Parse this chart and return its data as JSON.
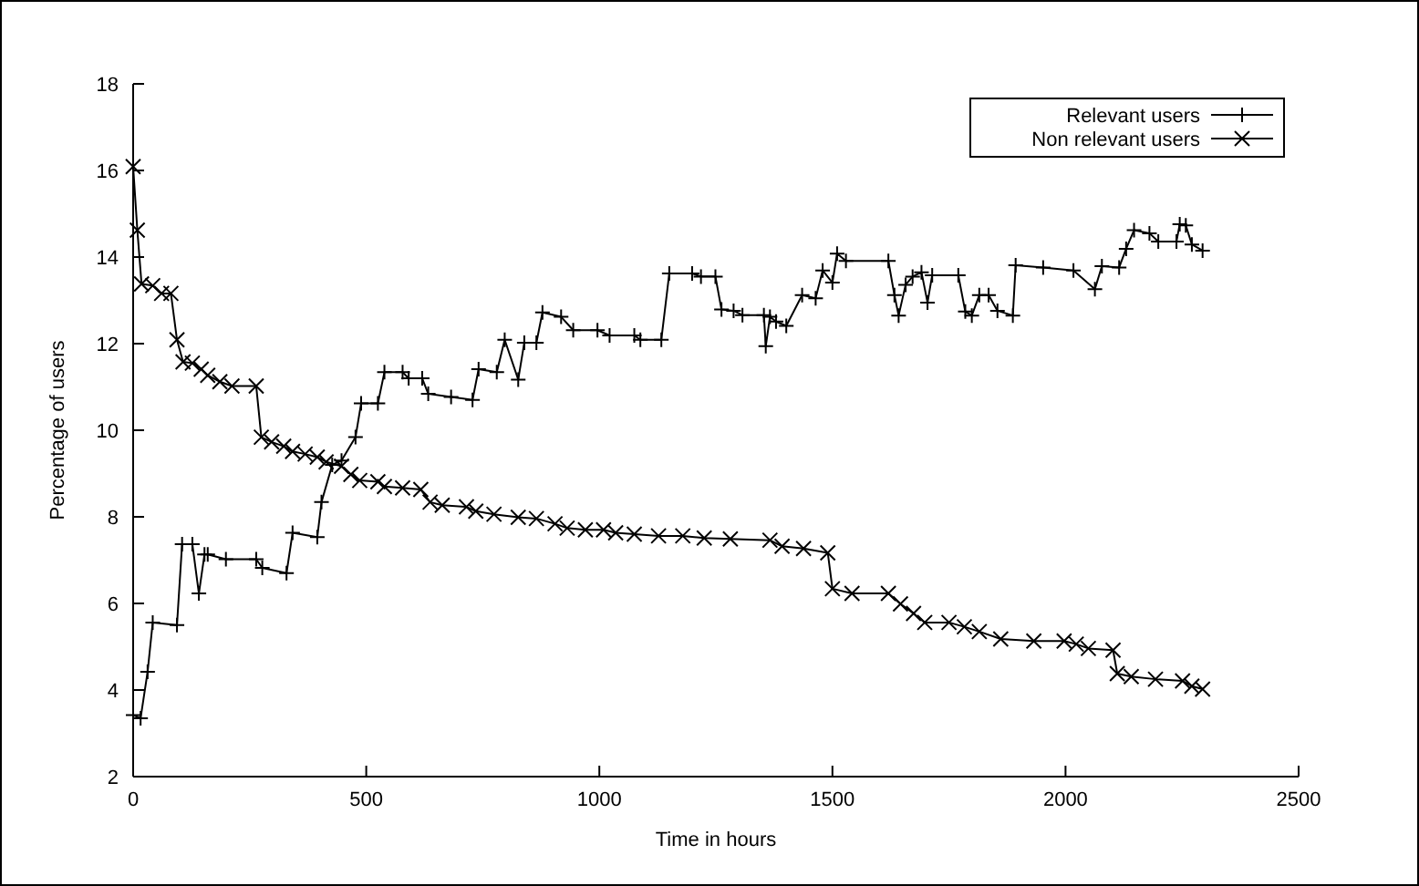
{
  "chart_data": {
    "type": "line",
    "xlabel": "Time in hours",
    "ylabel": "Percentage of users",
    "xlim": [
      0,
      2500
    ],
    "xticks": [
      0,
      500,
      1000,
      1500,
      2000,
      2500
    ],
    "ylim": [
      2,
      18
    ],
    "yticks": [
      2,
      4,
      6,
      8,
      10,
      12,
      14,
      16,
      18
    ],
    "grid": false,
    "legend": "top right",
    "line_style": "solid",
    "series": [
      {
        "name": "Relevant users",
        "color": "#000000",
        "marker": "cross",
        "x": [
          0,
          16,
          31,
          42,
          94,
          105,
          127,
          141,
          153,
          160,
          199,
          264,
          277,
          329,
          342,
          395,
          404,
          427,
          447,
          477,
          489,
          525,
          539,
          578,
          591,
          620,
          633,
          682,
          728,
          741,
          780,
          797,
          826,
          839,
          865,
          878,
          918,
          944,
          996,
          1022,
          1075,
          1088,
          1133,
          1150,
          1199,
          1218,
          1249,
          1262,
          1288,
          1307,
          1353,
          1357,
          1366,
          1379,
          1401,
          1435,
          1464,
          1479,
          1500,
          1510,
          1529,
          1620,
          1633,
          1642,
          1657,
          1672,
          1691,
          1704,
          1714,
          1770,
          1785,
          1799,
          1815,
          1835,
          1854,
          1887,
          1893,
          1952,
          2017,
          2063,
          2078,
          2115,
          2130,
          2147,
          2180,
          2199,
          2238,
          2245,
          2258,
          2271,
          2294
        ],
        "values": [
          3.42,
          3.35,
          4.42,
          5.56,
          5.5,
          7.37,
          7.37,
          6.23,
          7.13,
          7.13,
          7.02,
          7.02,
          6.82,
          6.7,
          7.63,
          7.53,
          8.34,
          9.2,
          9.3,
          9.84,
          10.62,
          10.62,
          11.34,
          11.34,
          11.2,
          11.2,
          10.84,
          10.77,
          10.7,
          11.41,
          11.34,
          12.09,
          11.17,
          12.02,
          12.02,
          12.72,
          12.62,
          12.31,
          12.31,
          12.19,
          12.19,
          12.09,
          12.09,
          13.62,
          13.62,
          13.55,
          13.55,
          12.79,
          12.76,
          12.66,
          12.66,
          11.94,
          12.62,
          12.51,
          12.41,
          13.12,
          13.05,
          13.69,
          13.41,
          14.08,
          13.91,
          13.91,
          13.12,
          12.65,
          13.36,
          13.55,
          13.65,
          12.95,
          13.58,
          13.58,
          12.74,
          12.65,
          13.12,
          13.12,
          12.76,
          12.65,
          13.81,
          13.76,
          13.69,
          13.26,
          13.79,
          13.76,
          14.19,
          14.62,
          14.55,
          14.36,
          14.36,
          14.76,
          14.73,
          14.29,
          14.15
        ]
      },
      {
        "name": "Non relevant users",
        "color": "#000000",
        "marker": "x",
        "x": [
          0,
          9,
          18,
          42,
          61,
          81,
          94,
          107,
          127,
          146,
          160,
          186,
          212,
          264,
          275,
          297,
          323,
          342,
          369,
          395,
          414,
          447,
          467,
          486,
          525,
          539,
          578,
          617,
          637,
          663,
          715,
          735,
          774,
          826,
          865,
          905,
          931,
          970,
          1009,
          1035,
          1075,
          1127,
          1179,
          1225,
          1281,
          1366,
          1392,
          1438,
          1490,
          1500,
          1542,
          1620,
          1646,
          1674,
          1698,
          1750,
          1783,
          1815,
          1861,
          1932,
          1997,
          2023,
          2049,
          2102,
          2111,
          2141,
          2193,
          2251,
          2271,
          2294
        ],
        "values": [
          16.09,
          14.62,
          13.38,
          13.34,
          13.16,
          13.16,
          12.09,
          11.58,
          11.55,
          11.41,
          11.27,
          11.12,
          11.02,
          11.02,
          9.84,
          9.73,
          9.63,
          9.51,
          9.45,
          9.38,
          9.27,
          9.17,
          8.98,
          8.84,
          8.81,
          8.7,
          8.67,
          8.63,
          8.34,
          8.27,
          8.23,
          8.13,
          8.06,
          7.99,
          7.96,
          7.84,
          7.74,
          7.7,
          7.7,
          7.63,
          7.6,
          7.56,
          7.56,
          7.51,
          7.49,
          7.46,
          7.32,
          7.27,
          7.17,
          6.34,
          6.23,
          6.23,
          5.99,
          5.77,
          5.56,
          5.56,
          5.46,
          5.35,
          5.18,
          5.13,
          5.13,
          5.06,
          4.96,
          4.92,
          4.38,
          4.31,
          4.25,
          4.21,
          4.09,
          4.02
        ]
      }
    ]
  }
}
